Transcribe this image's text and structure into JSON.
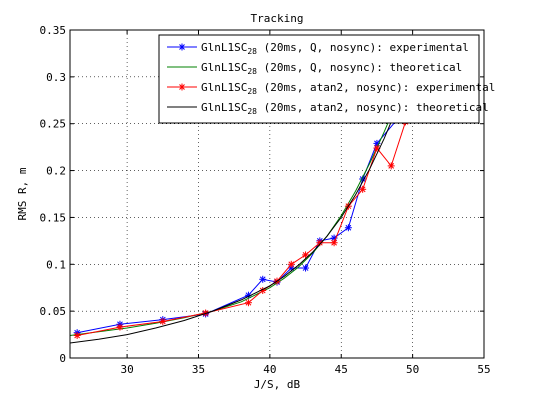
{
  "chart_data": {
    "type": "line",
    "title": "Tracking",
    "xlabel": "J/S, dB",
    "ylabel": "RMS R, m",
    "xlim": [
      26,
      55
    ],
    "ylim": [
      0,
      0.35
    ],
    "xticks": [
      "30",
      "35",
      "40",
      "45",
      "50",
      "55"
    ],
    "xtick_values": [
      30,
      35,
      40,
      45,
      50,
      55
    ],
    "yticks": [
      "0",
      "0.05",
      "0.1",
      "0.15",
      "0.2",
      "0.25",
      "0.3",
      "0.35"
    ],
    "ytick_values": [
      0,
      0.05,
      0.1,
      0.15,
      0.2,
      0.25,
      0.3,
      0.35
    ],
    "grid": true,
    "legend_position": "top-right",
    "series": [
      {
        "name_main": "GlnL1SC",
        "name_sub": "28",
        "name_rest": " (20ms, Q, nosync): experimental",
        "color": "#0000ff",
        "marker": "asterisk",
        "x": [
          26.5,
          29.5,
          32.5,
          35.5,
          38.5,
          39.5,
          40.5,
          41.5,
          42.5,
          43.5,
          44.5,
          45.5,
          46.5,
          47.5,
          49.5
        ],
        "y": [
          0.027,
          0.036,
          0.041,
          0.047,
          0.067,
          0.084,
          0.081,
          0.096,
          0.096,
          0.125,
          0.128,
          0.139,
          0.191,
          0.229,
          0.265
        ]
      },
      {
        "name_main": "GlnL1SC",
        "name_sub": "28",
        "name_rest": " (20ms, Q, nosync): theoretical",
        "color": "#008000",
        "marker": "none",
        "x": [
          26,
          28,
          30,
          32,
          34,
          36,
          38,
          40,
          41,
          42,
          43,
          44,
          45,
          46,
          47,
          48,
          49,
          50
        ],
        "y": [
          0.024,
          0.028,
          0.032,
          0.037,
          0.043,
          0.05,
          0.06,
          0.075,
          0.085,
          0.097,
          0.112,
          0.13,
          0.152,
          0.178,
          0.208,
          0.241,
          0.277,
          0.317
        ]
      },
      {
        "name_main": "GlnL1SC",
        "name_sub": "28",
        "name_rest": " (20ms, atan2, nosync): experimental",
        "color": "#ff0000",
        "marker": "asterisk",
        "x": [
          26.5,
          29.5,
          32.5,
          35.5,
          38.5,
          39.5,
          40.5,
          41.5,
          42.5,
          43.5,
          44.5,
          45.5,
          46.5,
          47.5,
          48.5,
          49.5
        ],
        "y": [
          0.024,
          0.033,
          0.039,
          0.048,
          0.059,
          0.072,
          0.082,
          0.1,
          0.11,
          0.123,
          0.123,
          0.162,
          0.18,
          0.224,
          0.205,
          0.252
        ]
      },
      {
        "name_main": "GlnL1SC",
        "name_sub": "28",
        "name_rest": " (20ms, atan2, nosync): theoretical",
        "color": "#000000",
        "marker": "none",
        "x": [
          26,
          28,
          30,
          32,
          34,
          36,
          38,
          40,
          41,
          42,
          43,
          44,
          45,
          46,
          47,
          48,
          49,
          50
        ],
        "y": [
          0.016,
          0.02,
          0.025,
          0.032,
          0.04,
          0.05,
          0.062,
          0.077,
          0.087,
          0.099,
          0.113,
          0.13,
          0.15,
          0.174,
          0.202,
          0.234,
          0.27,
          0.31
        ]
      }
    ]
  }
}
